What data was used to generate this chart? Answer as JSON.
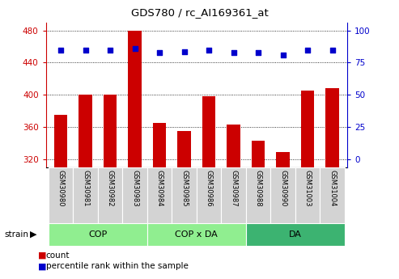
{
  "title": "GDS780 / rc_AI169361_at",
  "categories": [
    "GSM30980",
    "GSM30981",
    "GSM30982",
    "GSM30983",
    "GSM30984",
    "GSM30985",
    "GSM30986",
    "GSM30987",
    "GSM30988",
    "GSM30990",
    "GSM31003",
    "GSM31004"
  ],
  "counts": [
    375,
    400,
    400,
    480,
    365,
    355,
    398,
    363,
    343,
    329,
    405,
    408
  ],
  "percentile_left_vals": [
    455,
    455,
    455,
    457,
    452,
    453,
    455,
    452,
    452,
    449,
    455,
    455
  ],
  "groups": [
    {
      "label": "COP",
      "start": 0,
      "end": 4
    },
    {
      "label": "COP x DA",
      "start": 4,
      "end": 8
    },
    {
      "label": "DA",
      "start": 8,
      "end": 12
    }
  ],
  "group_colors": [
    "#90EE90",
    "#90EE90",
    "#3CB371"
  ],
  "ylim_left": [
    310,
    490
  ],
  "ylim_right": [
    0,
    100
  ],
  "yticks_left": [
    320,
    360,
    400,
    440,
    480
  ],
  "yticks_right": [
    0,
    25,
    50,
    75,
    100
  ],
  "bar_color": "#CC0000",
  "dot_color": "#0000CC",
  "label_bg_color": "#D3D3D3",
  "label_border_color": "#FFFFFF"
}
